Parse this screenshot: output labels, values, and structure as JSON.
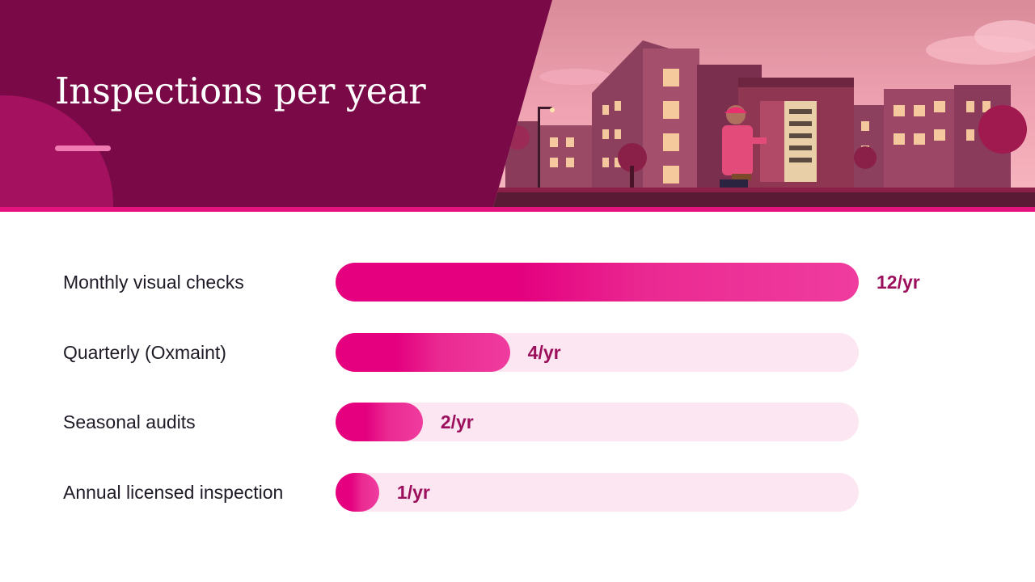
{
  "title": "Inspections per year",
  "colors": {
    "header_bg": "#7a0a47",
    "accent": "#e4127e",
    "bar_fill": "#e4007f",
    "bar_track": "#fbe6f1",
    "value_text": "#9c0f5c",
    "label_text": "#1f1a26"
  },
  "illustration": {
    "description_icon": "electrician-inspecting-electrical-panel-at-apartments-dusk"
  },
  "chart_data": {
    "type": "bar",
    "orientation": "horizontal",
    "title": "Inspections per year",
    "categories": [
      "Monthly visual checks",
      "Quarterly (Oxmaint)",
      "Seasonal audits",
      "Annual licensed inspection"
    ],
    "values": [
      12,
      4,
      2,
      1
    ],
    "value_labels": [
      "12/yr",
      "4/yr",
      "2/yr",
      "1/yr"
    ],
    "xlim": [
      0,
      12
    ],
    "grid": false,
    "legend": "none"
  }
}
